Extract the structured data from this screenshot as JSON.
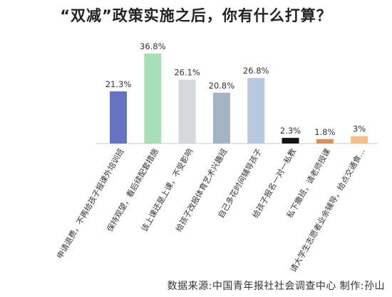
{
  "title": "“双减”政策实施之后，你有什么打算？",
  "footer": "数据来源:中国青年报社社会调查中心  制作:孙山",
  "chart_data": {
    "type": "bar",
    "title": "“双减”政策实施之后，你有什么打算？",
    "xlabel": "",
    "ylabel": "",
    "ylim": [
      0,
      40
    ],
    "grid": false,
    "legend": "none",
    "categories": [
      "申请退费，不再给孩子报课外培训班",
      "保持观望，看后续配套措施",
      "该上课还是上课，不受影响",
      "给孩子改报体育艺术兴趣班",
      "自己多花时间辅导孩子",
      "给孩子报名一对一私教",
      "私下撒班，请老师授课",
      "请大学生志愿者业余辅导，给点交通食..."
    ],
    "values": [
      21.3,
      36.8,
      26.1,
      20.8,
      26.8,
      2.3,
      1.8,
      3
    ],
    "value_labels": [
      "21.3%",
      "36.8%",
      "26.1%",
      "20.8%",
      "26.8%",
      "2.3%",
      "1.8%",
      "3%"
    ],
    "colors": [
      "#6672c2",
      "#a7dfb9",
      "#d6d9dc",
      "#a5b3c7",
      "#b8c9dd",
      "#141414",
      "#d9925b",
      "#f4bf86"
    ]
  }
}
